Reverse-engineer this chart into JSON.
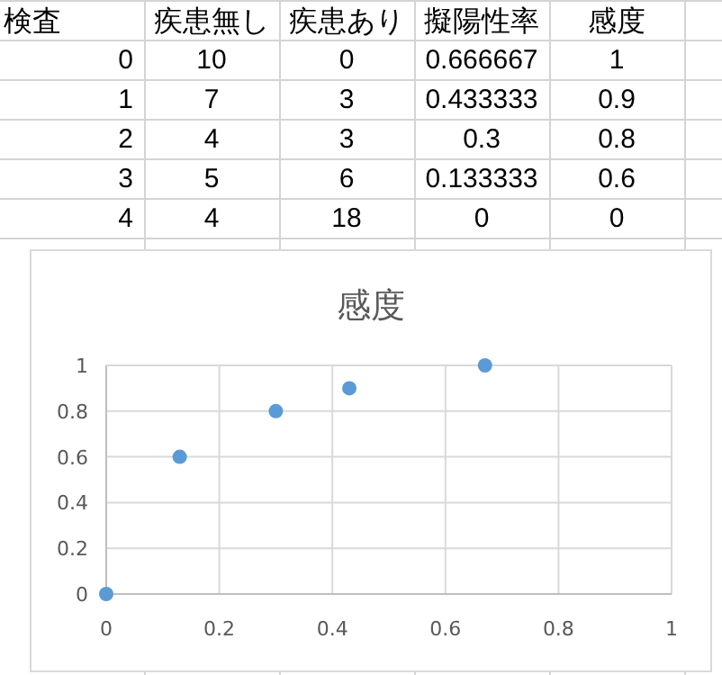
{
  "chart_data": [
    {
      "type": "heatmap",
      "ylabel": "検査",
      "categories": [
        "疾患無し",
        "疾患あり",
        "擬陽性率",
        "感度"
      ],
      "y_categories": [
        "0",
        "1",
        "2",
        "3",
        "4"
      ],
      "cells": [
        [
          10,
          0,
          0.666667,
          1
        ],
        [
          7,
          3,
          0.433333,
          0.9
        ],
        [
          4,
          3,
          0.3,
          0.8
        ],
        [
          5,
          6,
          0.133333,
          0.6
        ],
        [
          4,
          18,
          0,
          0
        ]
      ],
      "data_labels": true
    },
    {
      "type": "scatter",
      "title": "感度",
      "x": [
        0.67,
        0.43,
        0.3,
        0.13,
        0
      ],
      "values": [
        1,
        0.9,
        0.8,
        0.6,
        0
      ],
      "color": "#5b9bd5",
      "marker": "circle",
      "xlim": [
        0,
        1
      ],
      "xticks": [
        0,
        0.2,
        0.4,
        0.6,
        0.8,
        1
      ],
      "ylim": [
        0,
        1
      ],
      "yticks": [
        0,
        0.2,
        0.4,
        0.6,
        0.8,
        1
      ],
      "grid": true
    }
  ]
}
